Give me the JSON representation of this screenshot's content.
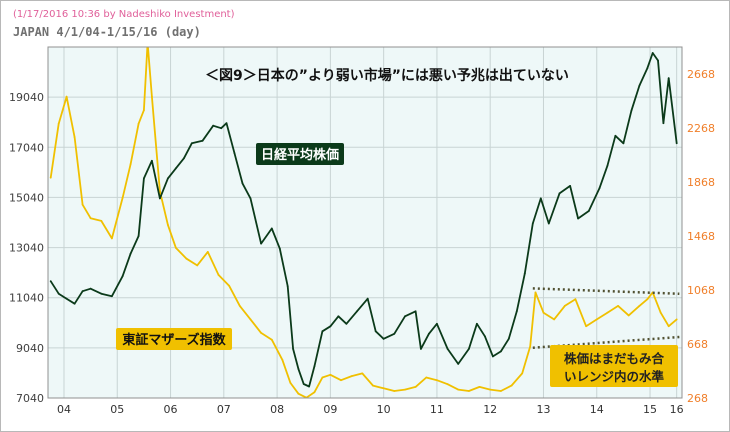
{
  "header": {
    "timestamp_credit": "(1/17/2016 10:36 by Nadeshiko Investment)",
    "subtitle": "JAPAN  4/1/04-1/15/16 (day)"
  },
  "colors": {
    "plot_bg": "#eef8f8",
    "nikkei": "#0b3a1a",
    "mothers": "#f0c000",
    "right_axis": "#f07f2a",
    "left_axis": "#404040",
    "grid": "#c8d4d4",
    "nikkei_label_bg": "#0b3a1a",
    "mothers_label_bg": "#f0c000",
    "trend_line": "#505030"
  },
  "chart_data": {
    "type": "line",
    "title": "＜図9＞日本の”より弱い市場”には悪い予兆は出ていない",
    "x_range": [
      2004.2,
      2016.1
    ],
    "x_ticks": [
      {
        "value": 2004.5,
        "label": "04"
      },
      {
        "value": 2005.5,
        "label": "05"
      },
      {
        "value": 2006.5,
        "label": "06"
      },
      {
        "value": 2007.5,
        "label": "07"
      },
      {
        "value": 2008.5,
        "label": "08"
      },
      {
        "value": 2009.5,
        "label": "09"
      },
      {
        "value": 2010.5,
        "label": "10"
      },
      {
        "value": 2011.5,
        "label": "11"
      },
      {
        "value": 2012.5,
        "label": "12"
      },
      {
        "value": 2013.5,
        "label": "13"
      },
      {
        "value": 2014.5,
        "label": "14"
      },
      {
        "value": 2015.5,
        "label": "15"
      },
      {
        "value": 2016.0,
        "label": "16"
      }
    ],
    "y_left": {
      "range": [
        7040,
        21040
      ],
      "ticks": [
        7040,
        9040,
        11040,
        13040,
        15040,
        17040,
        19040
      ]
    },
    "y_right": {
      "range": [
        268,
        2868
      ],
      "ticks": [
        268,
        668,
        1068,
        1468,
        1868,
        2268,
        2668
      ]
    },
    "series": [
      {
        "name": "日経平均株価",
        "axis": "left",
        "x": [
          2004.25,
          2004.4,
          2004.55,
          2004.7,
          2004.85,
          2005.0,
          2005.2,
          2005.4,
          2005.6,
          2005.75,
          2005.9,
          2006.0,
          2006.15,
          2006.3,
          2006.45,
          2006.6,
          2006.75,
          2006.9,
          2007.1,
          2007.3,
          2007.45,
          2007.55,
          2007.7,
          2007.85,
          2008.0,
          2008.2,
          2008.4,
          2008.55,
          2008.7,
          2008.8,
          2008.9,
          2009.0,
          2009.1,
          2009.2,
          2009.35,
          2009.5,
          2009.65,
          2009.8,
          2010.0,
          2010.2,
          2010.35,
          2010.5,
          2010.7,
          2010.9,
          2011.1,
          2011.2,
          2011.35,
          2011.5,
          2011.7,
          2011.9,
          2012.1,
          2012.25,
          2012.4,
          2012.55,
          2012.7,
          2012.85,
          2013.0,
          2013.15,
          2013.3,
          2013.45,
          2013.6,
          2013.8,
          2014.0,
          2014.15,
          2014.35,
          2014.55,
          2014.7,
          2014.85,
          2015.0,
          2015.15,
          2015.3,
          2015.45,
          2015.55,
          2015.65,
          2015.75,
          2015.85,
          2016.0
        ],
        "values": [
          11700,
          11200,
          11000,
          10800,
          11300,
          11400,
          11200,
          11100,
          11900,
          12800,
          13500,
          15800,
          16500,
          15000,
          15800,
          16200,
          16600,
          17200,
          17300,
          17900,
          17800,
          18000,
          16800,
          15600,
          15000,
          13200,
          13800,
          13000,
          11500,
          9000,
          8200,
          7600,
          7500,
          8300,
          9700,
          9900,
          10300,
          10000,
          10500,
          11000,
          9700,
          9400,
          9600,
          10300,
          10500,
          9000,
          9600,
          10000,
          9000,
          8400,
          9000,
          10000,
          9500,
          8700,
          8900,
          9400,
          10500,
          12000,
          14000,
          15000,
          14000,
          15200,
          15500,
          14200,
          14500,
          15400,
          16300,
          17500,
          17200,
          18500,
          19500,
          20200,
          20800,
          20500,
          18000,
          19800,
          17200
        ]
      },
      {
        "name": "東証マザーズ指数",
        "axis": "right",
        "x": [
          2004.25,
          2004.4,
          2004.55,
          2004.7,
          2004.85,
          2005.0,
          2005.2,
          2005.4,
          2005.6,
          2005.75,
          2005.9,
          2006.0,
          2006.07,
          2006.15,
          2006.3,
          2006.45,
          2006.6,
          2006.8,
          2007.0,
          2007.2,
          2007.4,
          2007.6,
          2007.8,
          2008.0,
          2008.2,
          2008.4,
          2008.6,
          2008.75,
          2008.9,
          2009.05,
          2009.2,
          2009.35,
          2009.5,
          2009.7,
          2009.9,
          2010.1,
          2010.3,
          2010.5,
          2010.7,
          2010.9,
          2011.1,
          2011.3,
          2011.5,
          2011.7,
          2011.9,
          2012.1,
          2012.3,
          2012.5,
          2012.7,
          2012.9,
          2013.1,
          2013.25,
          2013.35,
          2013.5,
          2013.7,
          2013.9,
          2014.1,
          2014.3,
          2014.5,
          2014.7,
          2014.9,
          2015.1,
          2015.3,
          2015.45,
          2015.55,
          2015.7,
          2015.85,
          2016.0
        ],
        "values": [
          1900,
          2300,
          2500,
          2200,
          1700,
          1600,
          1580,
          1450,
          1750,
          2000,
          2300,
          2400,
          2900,
          2500,
          1800,
          1550,
          1380,
          1300,
          1250,
          1350,
          1180,
          1100,
          950,
          850,
          750,
          700,
          550,
          380,
          300,
          270,
          310,
          420,
          440,
          400,
          430,
          450,
          360,
          340,
          320,
          330,
          350,
          420,
          400,
          370,
          330,
          320,
          350,
          330,
          320,
          360,
          450,
          650,
          1050,
          900,
          850,
          950,
          1000,
          800,
          850,
          900,
          950,
          880,
          950,
          1000,
          1050,
          900,
          800,
          850
        ]
      }
    ],
    "annotations": [
      {
        "text": "日経平均株価",
        "series": "日経平均株価"
      },
      {
        "text": "東証マザーズ指数",
        "series": "東証マザーズ指数"
      },
      {
        "lines": [
          "株価はまだもみ合",
          "いレンジ内の水準"
        ]
      }
    ],
    "trend_lines": [
      {
        "axis": "right",
        "x": [
          2013.3,
          2016.05
        ],
        "values": [
          1080,
          1040
        ]
      },
      {
        "axis": "right",
        "x": [
          2013.3,
          2016.05
        ],
        "values": [
          640,
          720
        ]
      }
    ]
  }
}
